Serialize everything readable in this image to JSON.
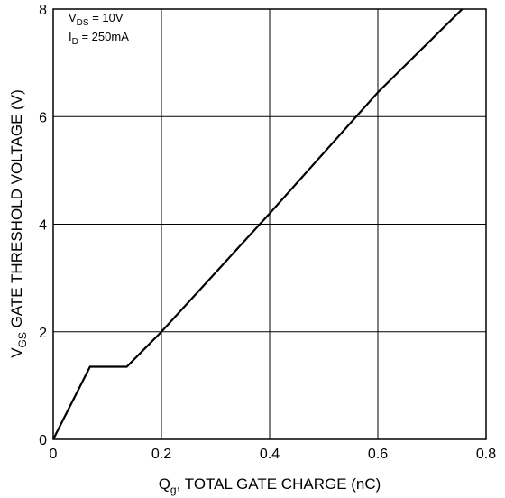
{
  "chart_data": {
    "type": "line",
    "x_ticks": [
      0,
      0.2,
      0.4,
      0.6,
      0.8
    ],
    "x_tick_labels": [
      "0",
      "0.2",
      "0.4",
      "0.6",
      "0.8"
    ],
    "y_ticks": [
      0,
      2,
      4,
      6,
      8
    ],
    "y_tick_labels": [
      "0",
      "2",
      "4",
      "6",
      "8"
    ],
    "xlim": [
      0,
      0.8
    ],
    "ylim": [
      0,
      8
    ],
    "grid": true,
    "xlabel": {
      "main": "Q",
      "sub": "g",
      "rest": ", TOTAL GATE CHARGE (nC)"
    },
    "ylabel": {
      "main": "V",
      "sub": "GS",
      "rest": "  GATE THRESHOLD VOLTAGE (V)"
    },
    "annotations": [
      {
        "main": "V",
        "sub": "DS",
        "rest": " = 10V"
      },
      {
        "main": "I",
        "sub": "D",
        "rest": " = 250mA"
      }
    ],
    "series": [
      {
        "x": [
          0,
          0.068,
          0.136,
          0.2,
          0.4,
          0.6,
          0.756
        ],
        "y": [
          0,
          1.35,
          1.35,
          2.0,
          4.2,
          6.45,
          8.0
        ]
      }
    ]
  }
}
